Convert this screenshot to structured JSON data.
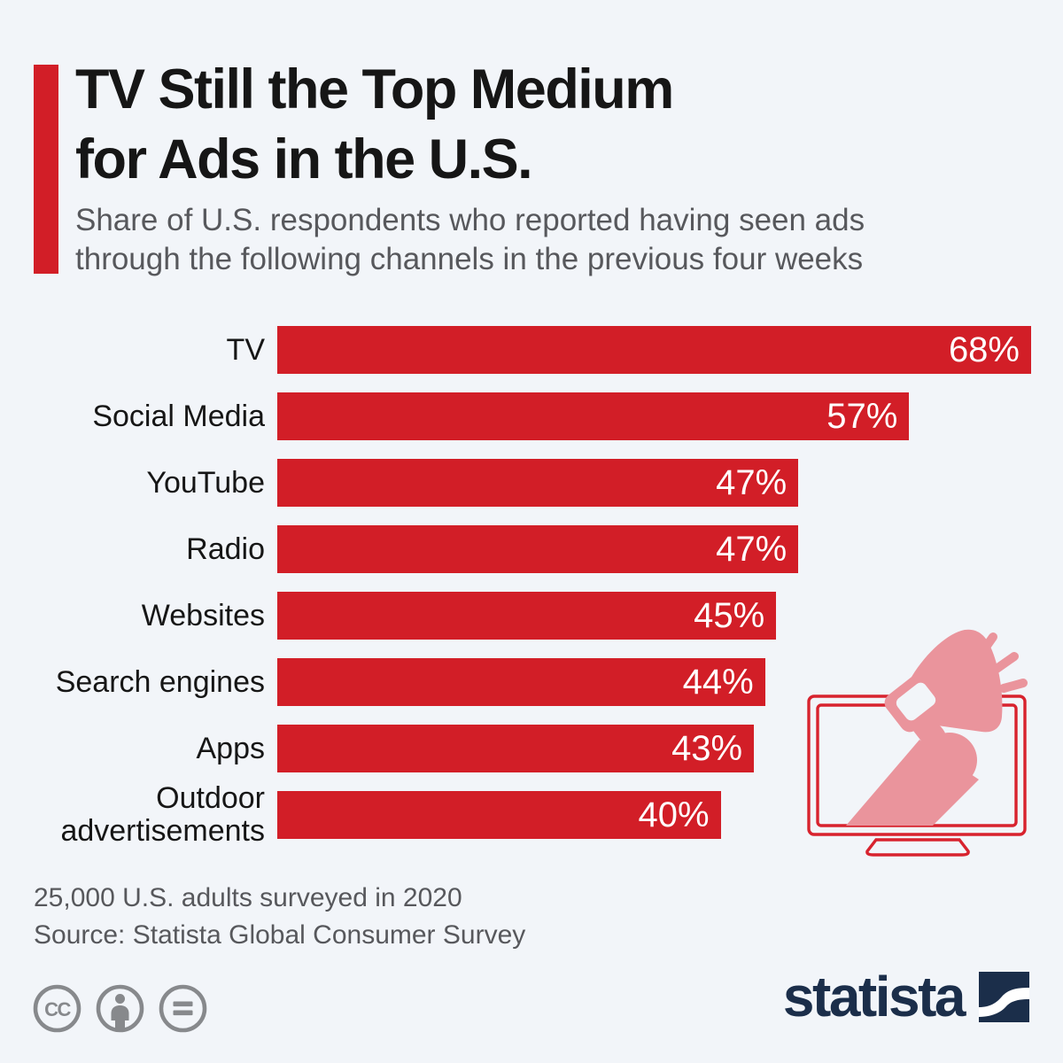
{
  "theme": {
    "background": "#f2f5f9",
    "red": "#d21e27",
    "pink": "#ea949c",
    "outline_red": "#d8232e",
    "navy": "#1b2e4a",
    "text_dark": "#161616",
    "text_gray": "#57585c",
    "icon_gray": "#87898c",
    "value_white": "#ffffff"
  },
  "header": {
    "title_line1": "TV Still the Top Medium",
    "title_line2": "for Ads in the U.S.",
    "subtitle_line1": "Share of U.S. respondents who reported having seen ads",
    "subtitle_line2": "through the following channels in the previous four weeks"
  },
  "chart_data": {
    "type": "bar",
    "orientation": "horizontal",
    "title": "TV Still the Top Medium for Ads in the U.S.",
    "subtitle": "Share of U.S. respondents who reported having seen ads through the following channels in the previous four weeks",
    "categories": [
      "TV",
      "Social Media",
      "YouTube",
      "Radio",
      "Websites",
      "Search engines",
      "Apps",
      "Outdoor advertisements"
    ],
    "values": [
      68,
      57,
      47,
      47,
      45,
      44,
      43,
      40
    ],
    "value_labels": [
      "68%",
      "57%",
      "47%",
      "47%",
      "45%",
      "44%",
      "43%",
      "40%"
    ],
    "unit": "%",
    "xlim": [
      0,
      68
    ],
    "grid": false,
    "legend": "none",
    "bar_color": "#d21e27",
    "value_label_position": "inside-end"
  },
  "illustration": {
    "name": "hand-with-megaphone-through-tv-screen"
  },
  "footer": {
    "note": "25,000 U.S. adults surveyed in 2020",
    "source": "Source: Statista Global Consumer Survey",
    "license_icons": [
      "creative-commons-icon",
      "attribution-person-icon",
      "equals-icon"
    ],
    "cc_text": "CC",
    "brand": "statista"
  }
}
